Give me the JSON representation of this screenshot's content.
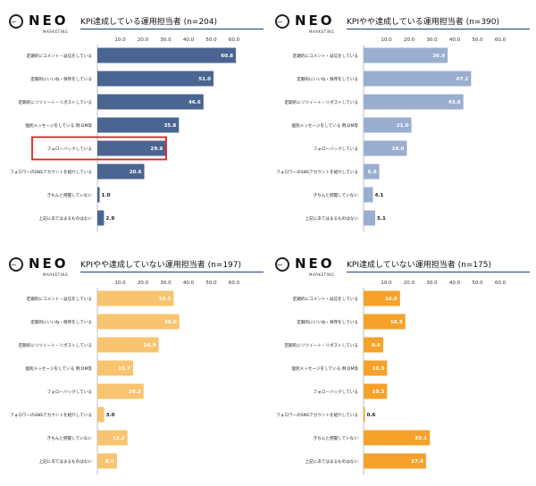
{
  "brand": {
    "word": "NEO",
    "sub": "MARKETING"
  },
  "chart_data": [
    {
      "type": "bar",
      "title": "KPI達成している運用担当者 (n=204)",
      "categories": [
        "定期的にコメント・返信をしている",
        "定期的にいいね・保存をしている",
        "定期的にリツイート・リポストしている",
        "個別メッセージをしている 例:DM等",
        "フォローバックしている",
        "フォロワーのSNSアカウントを紹介している",
        "きちんと把握していない",
        "上記にあてはまるものはない"
      ],
      "values": [
        60.8,
        51.0,
        46.6,
        35.8,
        29.9,
        20.6,
        1.0,
        2.9
      ],
      "value_labels": [
        "60.8",
        "51.0",
        "46.6",
        "35.8",
        "29.9",
        "20.6",
        "1.0",
        "2.9"
      ],
      "xlim": [
        0,
        60
      ],
      "ticks": [
        "10.0",
        "20.0",
        "30.0",
        "40.0",
        "50.0",
        "60.0"
      ],
      "color": "#4a6591",
      "highlight_index": 4
    },
    {
      "type": "bar",
      "title": "KPIやや達成している運用担当者 (n=390)",
      "categories": [
        "定期的にコメント・返信をしている",
        "定期的にいいね・保存をしている",
        "定期的にリツイート・リポストしている",
        "個別メッセージをしている 例:DM等",
        "フォローバックしている",
        "フォロワーのSNSアカウントを紹介している",
        "きちんと把握していない",
        "上記にあてはまるものはない"
      ],
      "values": [
        36.9,
        47.2,
        43.8,
        21.0,
        19.0,
        6.9,
        4.1,
        5.1
      ],
      "value_labels": [
        "36.9",
        "47.2",
        "43.8",
        "21.0",
        "19.0",
        "6.9",
        "4.1",
        "5.1"
      ],
      "xlim": [
        0,
        60
      ],
      "ticks": [
        "10.0",
        "20.0",
        "30.0",
        "40.0",
        "50.0",
        "60.0"
      ],
      "color": "#9aaed0"
    },
    {
      "type": "bar",
      "title": "KPIやや達成していない運用担当者 (n=197)",
      "categories": [
        "定期的にコメント・返信をしている",
        "定期的にいいね・保存をしている",
        "定期的にリツイート・リポストしている",
        "個別メッセージをしている 例:DM等",
        "フォローバックしている",
        "フォロワーのSNSアカウントを紹介している",
        "きちんと把握していない",
        "上記にあてはまるものはない"
      ],
      "values": [
        33.5,
        36.0,
        26.9,
        15.7,
        20.3,
        3.0,
        13.2,
        8.6
      ],
      "value_labels": [
        "33.5",
        "36.0",
        "26.9",
        "15.7",
        "20.3",
        "3.0",
        "13.2",
        "8.6"
      ],
      "xlim": [
        0,
        60
      ],
      "ticks": [
        "10.0",
        "20.0",
        "30.0",
        "40.0",
        "50.0",
        "60.0"
      ],
      "color": "#f8c46f"
    },
    {
      "type": "bar",
      "title": "KPI達成していない運用担当者 (n=175)",
      "categories": [
        "定期的にコメント・返信をしている",
        "定期的にいいね・保存をしている",
        "定期的にリツイート・リポストしている",
        "個別メッセージをしている 例:DM等",
        "フォローバックしている",
        "フォロワーのSNSアカウントを紹介している",
        "きちんと把握していない",
        "上記にあてはまるものはない"
      ],
      "values": [
        16.0,
        18.3,
        8.6,
        10.3,
        10.3,
        0.6,
        29.1,
        27.4
      ],
      "value_labels": [
        "16.0",
        "18.3",
        "8.6",
        "10.3",
        "10.3",
        "0.6",
        "29.1",
        "27.4"
      ],
      "xlim": [
        0,
        60
      ],
      "ticks": [
        "10.0",
        "20.0",
        "30.0",
        "40.0",
        "50.0",
        "60.0"
      ],
      "color": "#f5a12a"
    }
  ]
}
